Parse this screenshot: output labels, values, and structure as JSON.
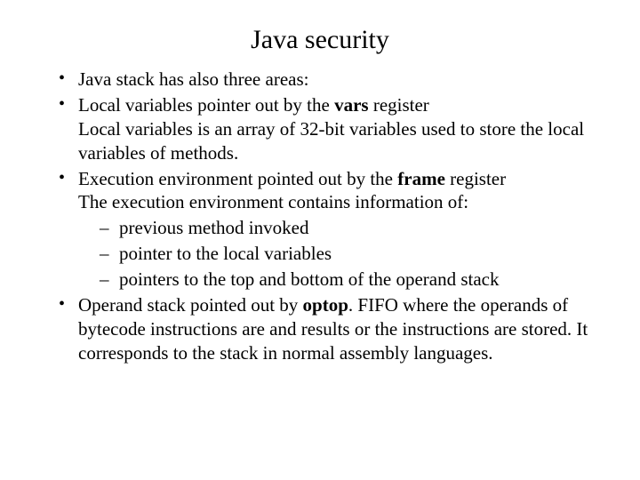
{
  "typography": {
    "font_family": "Times New Roman",
    "title_fontsize_pt": 30,
    "body_fontsize_pt": 21,
    "text_color": "#000000",
    "background_color": "#ffffff"
  },
  "slide": {
    "title": "Java security",
    "bullets": [
      {
        "text": "Java stack has also three areas:"
      },
      {
        "runs": [
          {
            "t": "Local variables pointer out by the "
          },
          {
            "t": "vars",
            "bold": true
          },
          {
            "t": " register"
          }
        ],
        "continuation": "Local variables is an array of 32-bit variables used to store the local variables of methods."
      },
      {
        "runs": [
          {
            "t": "Execution environment pointed out by the "
          },
          {
            "t": "frame",
            "bold": true
          },
          {
            "t": " register"
          }
        ],
        "continuation": "The execution environment contains information of:",
        "subbullets": [
          "previous method invoked",
          "pointer to the local variables",
          "pointers to the top and bottom of the operand stack"
        ]
      },
      {
        "runs": [
          {
            "t": "Operand stack pointed out by "
          },
          {
            "t": "optop",
            "bold": true
          },
          {
            "t": ". FIFO where the operands of bytecode instructions are and results or the instructions are stored. It corresponds to the stack in normal assembly languages."
          }
        ]
      }
    ]
  }
}
